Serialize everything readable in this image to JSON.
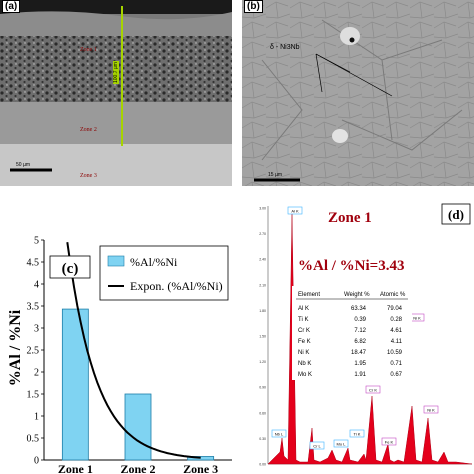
{
  "panel_a": {
    "tag": "(a)",
    "zone1": "Zone 1",
    "zone2": "Zone 2",
    "zone3": "Zone 3",
    "thickness": "100.7 µm",
    "scale": "50 µm"
  },
  "panel_b": {
    "tag": "(b)",
    "phase": "δ - Ni3Nb",
    "scale": "15 µm"
  },
  "panel_c": {
    "tag": "(c)",
    "legend_bar": "%Al/%Ni",
    "legend_line": "Expon. (%Al/%Ni)"
  },
  "panel_d": {
    "tag": "(d)",
    "zone": "Zone 1",
    "ratio": "%Al / %Ni=3.43",
    "table": {
      "headers": [
        "Element",
        "Weight %",
        "Atomic %"
      ],
      "rows": [
        [
          "Al K",
          "63.34",
          "79.04"
        ],
        [
          "Ti K",
          "0.39",
          "0.28"
        ],
        [
          "Cr K",
          "7.12",
          "4.61"
        ],
        [
          "Fe K",
          "6.82",
          "4.11"
        ],
        [
          "Ni K",
          "18.47",
          "10.59"
        ],
        [
          "Nb K",
          "1.95",
          "0.71"
        ],
        [
          "Mo K",
          "1.91",
          "0.67"
        ]
      ]
    },
    "y_ticks": [
      "3.00",
      "2.70",
      "2.40",
      "2.10",
      "1.80",
      "1.50",
      "1.20",
      "0.90",
      "0.60",
      "0.30",
      "0.00"
    ],
    "peak_labels": [
      "Al K",
      "Ni L",
      "Ni K",
      "Cr K",
      "Fe K",
      "Ni K",
      "Nb L",
      "Mo L",
      "Ti K",
      "Cr L"
    ],
    "colors": {
      "spectrum": "#e4001b",
      "zone_title": "#a0000d",
      "bar": "#7fd3f2"
    }
  },
  "chart_data": {
    "type": "bar",
    "categories": [
      "Zone 1",
      "Zone 2",
      "Zone 3"
    ],
    "series": [
      {
        "name": "%Al/%Ni",
        "values": [
          3.43,
          1.5,
          0.08
        ]
      }
    ],
    "trendline": {
      "name": "Expon. (%Al/%Ni)",
      "type": "exponential",
      "from": 4.95,
      "to": 0.05
    },
    "ylabel": "%Al / %Ni",
    "yticks": [
      "0",
      "0.5",
      "1",
      "1.5",
      "2",
      "2.5",
      "3",
      "3.5",
      "4",
      "4.5",
      "5"
    ],
    "ylim": [
      0,
      5
    ],
    "legend": "top-right"
  }
}
